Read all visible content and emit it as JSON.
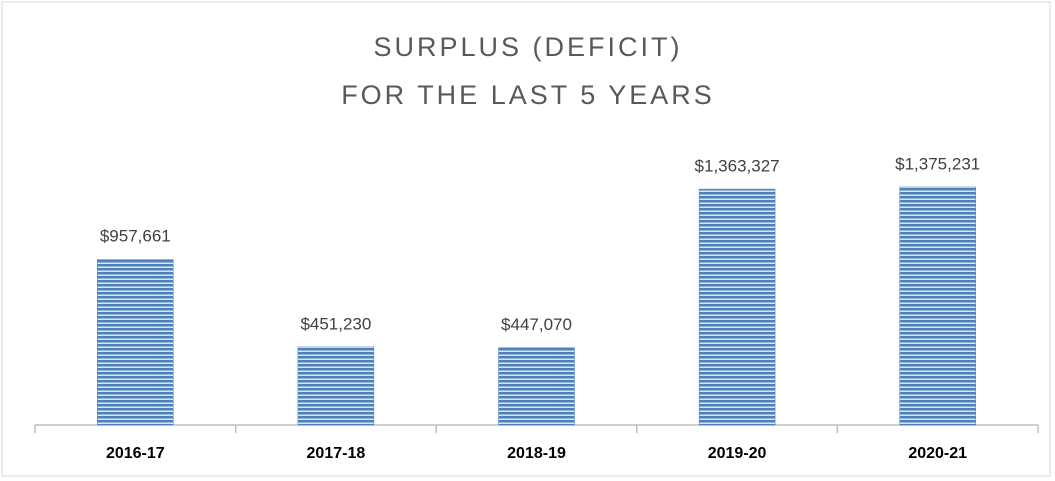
{
  "chart_data": {
    "type": "bar",
    "title": [
      "SURPLUS (DEFICIT)",
      "FOR THE LAST 5 YEARS"
    ],
    "categories": [
      "2016-17",
      "2017-18",
      "2018-19",
      "2019-20",
      "2020-21"
    ],
    "values": [
      957661,
      451230,
      447070,
      1363327,
      1375231
    ],
    "value_labels": [
      "$957,661",
      "$451,230",
      "$447,070",
      "$1,363,327",
      "$1,375,231"
    ],
    "color": "#4f81bd",
    "grid": false
  }
}
